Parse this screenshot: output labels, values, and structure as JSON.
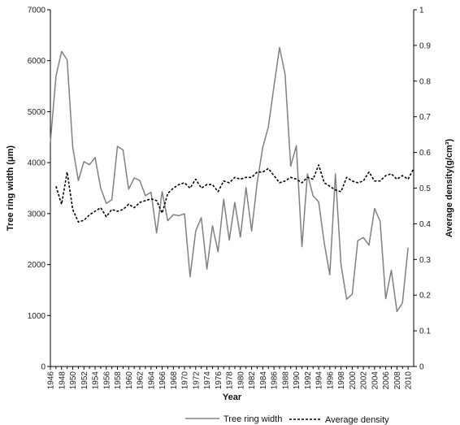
{
  "chart_data": {
    "type": "line",
    "xlabel": "Year",
    "ylabel": "Tree ring width  (μm)",
    "y2label": "Average density(g/cm³)",
    "xlim": [
      1946,
      2011
    ],
    "ylim": [
      0,
      7000
    ],
    "y2lim": [
      0,
      1
    ],
    "x_ticks": [
      "1946",
      "1948",
      "1950",
      "1952",
      "1954",
      "1956",
      "1958",
      "1960",
      "1962",
      "1964",
      "1966",
      "1968",
      "1970",
      "1972",
      "1974",
      "1976",
      "1978",
      "1980",
      "1982",
      "1984",
      "1986",
      "1988",
      "1990",
      "1992",
      "1994",
      "1996",
      "1998",
      "2000",
      "2002",
      "2004",
      "2006",
      "2008",
      "2010"
    ],
    "y_ticks": [
      "0",
      "1000",
      "2000",
      "3000",
      "4000",
      "5000",
      "6000",
      "7000"
    ],
    "y2_ticks": [
      "0",
      "0.1",
      "0.2",
      "0.3",
      "0.4",
      "0.5",
      "0.6",
      "0.7",
      "0.8",
      "0.9",
      "1"
    ],
    "legend_position": "bottom",
    "colors": {
      "width": "#808080",
      "density": "#000000",
      "axis": "#000000"
    },
    "series": [
      {
        "name": "Tree ring width",
        "axis": "left",
        "style": "solid",
        "x": [
          1946,
          1947,
          1948,
          1949,
          1950,
          1951,
          1952,
          1953,
          1954,
          1955,
          1956,
          1957,
          1958,
          1959,
          1960,
          1961,
          1962,
          1963,
          1964,
          1965,
          1966,
          1967,
          1968,
          1969,
          1970,
          1971,
          1972,
          1973,
          1974,
          1975,
          1976,
          1977,
          1978,
          1979,
          1980,
          1981,
          1982,
          1983,
          1984,
          1985,
          1986,
          1987,
          1988,
          1989,
          1990,
          1991,
          1992,
          1993,
          1994,
          1995,
          1996,
          1997,
          1998,
          1999,
          2000,
          2001,
          2002,
          2003,
          2004,
          2005,
          2006,
          2007,
          2008,
          2009,
          2010
        ],
        "values": [
          4400,
          5700,
          6180,
          6020,
          4300,
          3650,
          4020,
          3960,
          4100,
          3500,
          3200,
          3270,
          4320,
          4250,
          3480,
          3700,
          3650,
          3350,
          3420,
          2620,
          3430,
          2860,
          2980,
          2960,
          3000,
          1760,
          2660,
          2920,
          1910,
          2760,
          2250,
          3280,
          2480,
          3220,
          2540,
          3510,
          2660,
          3600,
          4300,
          4700,
          5500,
          6260,
          5730,
          3930,
          4330,
          2350,
          3780,
          3350,
          3230,
          2420,
          1800,
          3780,
          2000,
          1320,
          1420,
          2470,
          2530,
          2380,
          3100,
          2850,
          1330,
          1890,
          1080,
          1250,
          2330
        ]
      },
      {
        "name": "Average density",
        "axis": "right",
        "style": "dashed",
        "x": [
          1947,
          1948,
          1949,
          1950,
          1951,
          1952,
          1953,
          1954,
          1955,
          1956,
          1957,
          1958,
          1959,
          1960,
          1961,
          1962,
          1963,
          1964,
          1965,
          1966,
          1967,
          1968,
          1969,
          1970,
          1971,
          1972,
          1973,
          1974,
          1975,
          1976,
          1977,
          1978,
          1979,
          1980,
          1981,
          1982,
          1983,
          1984,
          1985,
          1986,
          1987,
          1988,
          1989,
          1990,
          1991,
          1992,
          1993,
          1994,
          1995,
          1996,
          1997,
          1998,
          1999,
          2000,
          2001,
          2002,
          2003,
          2004,
          2005,
          2006,
          2007,
          2008,
          2009,
          2010,
          2011
        ],
        "values": [
          0.505,
          0.455,
          0.545,
          0.44,
          0.405,
          0.41,
          0.425,
          0.435,
          0.445,
          0.42,
          0.44,
          0.435,
          0.44,
          0.455,
          0.445,
          0.46,
          0.465,
          0.47,
          0.465,
          0.43,
          0.485,
          0.5,
          0.51,
          0.515,
          0.5,
          0.525,
          0.5,
          0.51,
          0.51,
          0.49,
          0.52,
          0.515,
          0.53,
          0.525,
          0.53,
          0.53,
          0.545,
          0.545,
          0.555,
          0.535,
          0.515,
          0.52,
          0.53,
          0.525,
          0.515,
          0.53,
          0.525,
          0.565,
          0.515,
          0.505,
          0.495,
          0.49,
          0.53,
          0.52,
          0.515,
          0.52,
          0.545,
          0.52,
          0.52,
          0.535,
          0.54,
          0.525,
          0.535,
          0.525,
          0.555
        ]
      }
    ]
  }
}
